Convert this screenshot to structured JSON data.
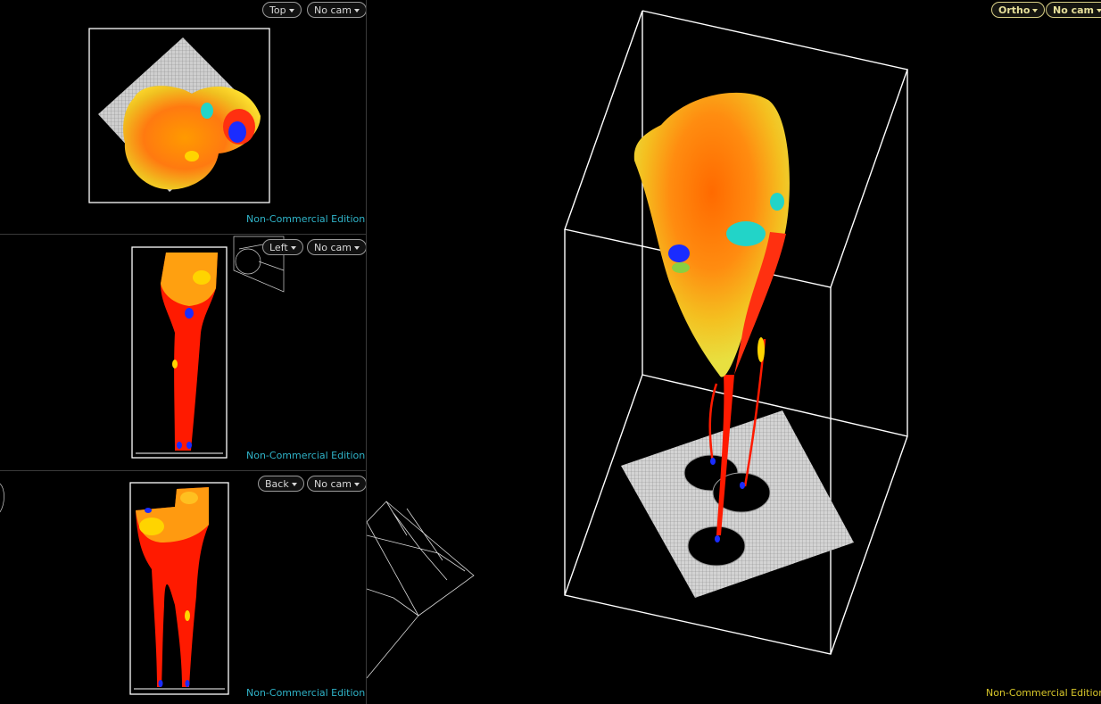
{
  "views": {
    "top": {
      "view_label": "Top",
      "cam_label": "No cam",
      "edition": "Non-Commercial Edition"
    },
    "left": {
      "view_label": "Left",
      "cam_label": "No cam",
      "edition": "Non-Commercial Edition"
    },
    "back": {
      "view_label": "Back",
      "cam_label": "No cam",
      "edition": "Non-Commercial Edition"
    },
    "perspective": {
      "view_label": "Ortho",
      "cam_label": "No cam",
      "edition": "Non-Commercial Edition"
    }
  },
  "colors": {
    "accent_edition_small": "#2fb3c8",
    "accent_edition_main": "#d9c82a",
    "bbox": "#ffffff",
    "fluid_hot": "#ff1a00",
    "fluid_warm": "#ff8c00",
    "fluid_mid": "#ffd400",
    "fluid_cool": "#22d4c8",
    "fluid_cold": "#1a2cff"
  }
}
